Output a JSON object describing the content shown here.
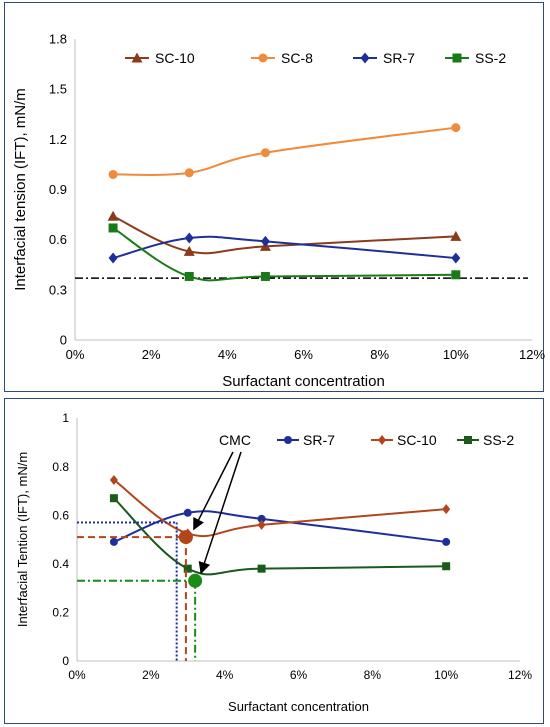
{
  "chart_data": [
    {
      "type": "line",
      "title": "",
      "xlabel": "Surfactant concentration",
      "ylabel": "Interfacial tension (IFT), mN/m",
      "xlim": [
        0,
        12
      ],
      "ylim": [
        0,
        1.8
      ],
      "x_ticks": [
        "0%",
        "2%",
        "4%",
        "6%",
        "8%",
        "10%",
        "12%"
      ],
      "y_ticks": [
        "0",
        "0.3",
        "0.6",
        "0.9",
        "1.2",
        "1.5",
        "1.8"
      ],
      "grid": false,
      "legend": "top",
      "reference_line": {
        "y": 0.37,
        "style": "dash-dot",
        "color": "#000000"
      },
      "series": [
        {
          "name": "SC-10",
          "color": "#8b3a1a",
          "marker": "triangle",
          "x": [
            1,
            3,
            5,
            10
          ],
          "y": [
            0.74,
            0.53,
            0.56,
            0.62
          ]
        },
        {
          "name": "SC-8",
          "color": "#f08a3c",
          "marker": "circle",
          "x": [
            1,
            3,
            5,
            10
          ],
          "y": [
            0.99,
            1.0,
            1.12,
            1.27
          ]
        },
        {
          "name": "SR-7",
          "color": "#1f2f9a",
          "marker": "diamond",
          "x": [
            1,
            3,
            5,
            10
          ],
          "y": [
            0.49,
            0.61,
            0.59,
            0.49
          ]
        },
        {
          "name": "SS-2",
          "color": "#1a7a1a",
          "marker": "square",
          "x": [
            1,
            3,
            5,
            10
          ],
          "y": [
            0.67,
            0.38,
            0.38,
            0.39
          ]
        }
      ]
    },
    {
      "type": "line",
      "title": "",
      "xlabel": "Surfactant concentration",
      "ylabel": "Interfacial Tention (IFT), mN/m",
      "xlim": [
        0,
        12
      ],
      "ylim": [
        0,
        1
      ],
      "x_ticks": [
        "0%",
        "2%",
        "4%",
        "6%",
        "8%",
        "10%",
        "12%"
      ],
      "y_ticks": [
        "0",
        "0.2",
        "0.4",
        "0.6",
        "0.8",
        "1"
      ],
      "grid": false,
      "legend": "top-right",
      "annotation": {
        "text": "CMC"
      },
      "series": [
        {
          "name": "SR-7",
          "color": "#1f2f9a",
          "marker": "circle",
          "x": [
            1,
            3,
            5,
            10
          ],
          "y": [
            0.49,
            0.61,
            0.585,
            0.49
          ]
        },
        {
          "name": "SC-10",
          "color": "#b2451c",
          "marker": "diamond",
          "x": [
            1,
            3,
            5,
            10
          ],
          "y": [
            0.745,
            0.525,
            0.56,
            0.625
          ]
        },
        {
          "name": "SS-2",
          "color": "#1a5a1a",
          "marker": "square",
          "x": [
            1,
            3,
            5,
            10
          ],
          "y": [
            0.67,
            0.38,
            0.38,
            0.39
          ]
        }
      ],
      "cmc_points": [
        {
          "series": "SR-7",
          "x": 2.7,
          "y": 0.57,
          "color": "#1f2f9a",
          "style": "dotted"
        },
        {
          "series": "SC-10",
          "x": 2.95,
          "y": 0.51,
          "color": "#b2451c",
          "style": "dashed"
        },
        {
          "series": "SS-2",
          "x": 3.2,
          "y": 0.33,
          "color": "#1a8a1a",
          "style": "dash-dot"
        }
      ]
    }
  ]
}
